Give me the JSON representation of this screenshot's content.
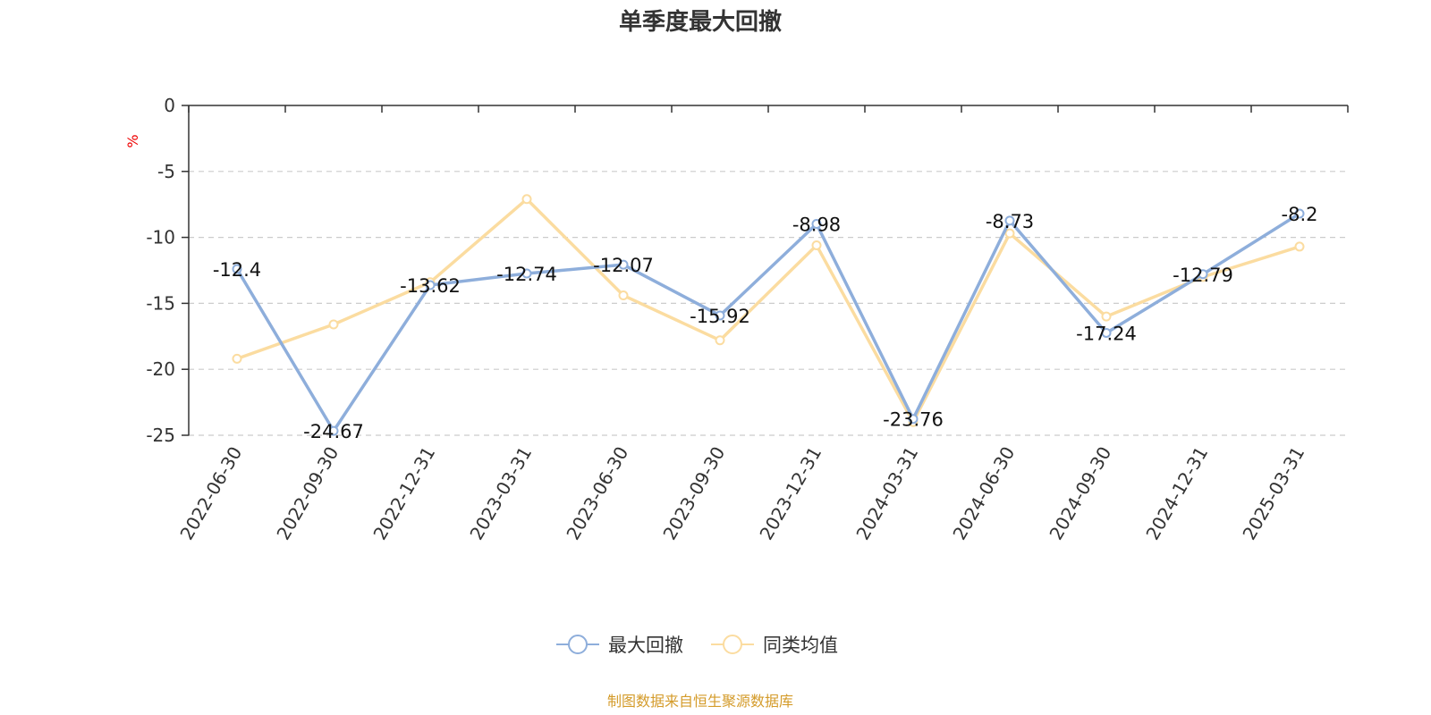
{
  "chart_data": {
    "type": "line",
    "title": "单季度最大回撤",
    "ylabel": "%",
    "ylabel_color": "#ee0000",
    "xlabel": "",
    "categories": [
      "2022-06-30",
      "2022-09-30",
      "2022-12-31",
      "2023-03-31",
      "2023-06-30",
      "2023-09-30",
      "2023-12-31",
      "2024-03-31",
      "2024-06-30",
      "2024-09-30",
      "2024-12-31",
      "2025-03-31"
    ],
    "ylim": [
      -25,
      0
    ],
    "yticks": [
      0,
      -5,
      -10,
      -15,
      -20,
      -25
    ],
    "grid": true,
    "legend_position": "bottom-center",
    "series": [
      {
        "name": "最大回撤",
        "color": "#8eaedb",
        "values": [
          -12.4,
          -24.67,
          -13.62,
          -12.74,
          -12.07,
          -15.92,
          -8.98,
          -23.76,
          -8.73,
          -17.24,
          -12.79,
          -8.2
        ],
        "labels": [
          "-12.4",
          "-24.67",
          "-13.62",
          "-12.74",
          "-12.07",
          "-15.92",
          "-8.98",
          "-23.76",
          "-8.73",
          "-17.24",
          "-12.79",
          "-8.2"
        ]
      },
      {
        "name": "同类均值",
        "color": "#fbdca0",
        "values": [
          -19.2,
          -16.6,
          -13.4,
          -7.1,
          -14.4,
          -17.8,
          -10.6,
          -24.0,
          -9.7,
          -16.0,
          -13.0,
          -10.7
        ]
      }
    ],
    "source": "制图数据来自恒生聚源数据库",
    "source_color": "#d49b2a"
  }
}
